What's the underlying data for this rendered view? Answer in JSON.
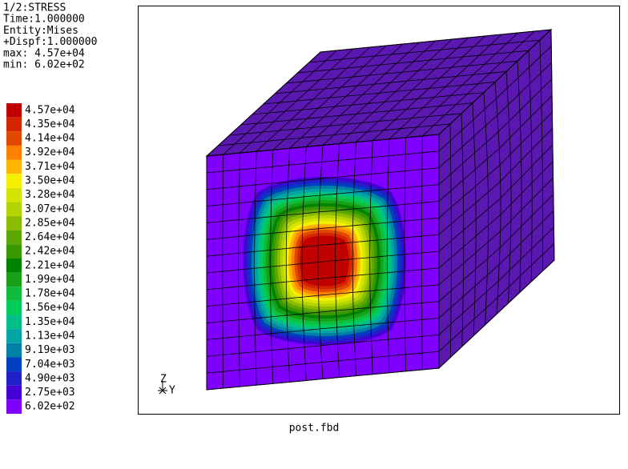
{
  "header": {
    "lines": [
      "1/2:STRESS",
      "Time:1.000000",
      "Entity:Mises",
      "+Dispf:1.000000",
      "max: 4.57e+04",
      "min: 6.02e+02"
    ]
  },
  "legend": {
    "entries": [
      {
        "label": "4.57e+04",
        "color": "#c00000"
      },
      {
        "label": "4.35e+04",
        "color": "#d42400"
      },
      {
        "label": "4.14e+04",
        "color": "#e04800"
      },
      {
        "label": "3.92e+04",
        "color": "#ff8000"
      },
      {
        "label": "3.71e+04",
        "color": "#ffb400"
      },
      {
        "label": "3.50e+04",
        "color": "#f4f000"
      },
      {
        "label": "3.28e+04",
        "color": "#d4e400"
      },
      {
        "label": "3.07e+04",
        "color": "#b4d400"
      },
      {
        "label": "2.85e+04",
        "color": "#8cbc00"
      },
      {
        "label": "2.64e+04",
        "color": "#5ca800"
      },
      {
        "label": "2.42e+04",
        "color": "#389800"
      },
      {
        "label": "2.21e+04",
        "color": "#008400"
      },
      {
        "label": "1.99e+04",
        "color": "#18a018"
      },
      {
        "label": "1.78e+04",
        "color": "#10bc3c"
      },
      {
        "label": "1.56e+04",
        "color": "#00cc5c"
      },
      {
        "label": "1.35e+04",
        "color": "#00c088"
      },
      {
        "label": "1.13e+04",
        "color": "#00a4a4"
      },
      {
        "label": "9.19e+03",
        "color": "#0080a4"
      },
      {
        "label": "7.04e+03",
        "color": "#0040c0"
      },
      {
        "label": "4.90e+03",
        "color": "#2020c8"
      },
      {
        "label": "2.75e+03",
        "color": "#4400d4"
      },
      {
        "label": "6.02e+02",
        "color": "#8000ff"
      }
    ]
  },
  "triad": {
    "z": "Z",
    "y": "Y"
  },
  "footer": "post.fbd"
}
